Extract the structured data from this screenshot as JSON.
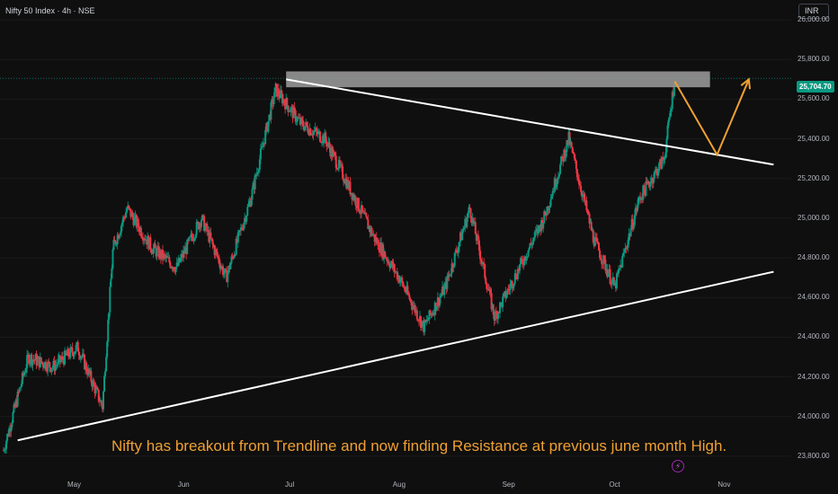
{
  "header": {
    "symbol": "Nifty 50 Index · 4h · NSE",
    "currency": "INR"
  },
  "last_price": {
    "label": "25,704.70",
    "value": 25704.7,
    "color": "#089981"
  },
  "note": "Nifty has breakout from Trendline and now finding Resistance at previous june month High.",
  "colors": {
    "up": "#089981",
    "down": "#f23645",
    "annotation": "#f0a032",
    "resistance": "#9e9e9e",
    "trendline": "#ffffff"
  },
  "icons": {
    "alert": "lightning-icon"
  },
  "chart_data": {
    "type": "candlestick",
    "timeframe": "4h",
    "x_ticks": [
      {
        "label": "May",
        "date": "2025-05-01"
      },
      {
        "label": "Jun",
        "date": "2025-06-01"
      },
      {
        "label": "Jul",
        "date": "2025-07-01"
      },
      {
        "label": "Aug",
        "date": "2025-08-01"
      },
      {
        "label": "Sep",
        "date": "2025-09-01"
      },
      {
        "label": "Oct",
        "date": "2025-10-01"
      },
      {
        "label": "Nov",
        "date": "2025-11-01"
      }
    ],
    "y_ticks": [
      "26,000.00",
      "25,800.00",
      "25,600.00",
      "25,400.00",
      "25,200.00",
      "25,000.00",
      "24,800.00",
      "24,600.00",
      "24,400.00",
      "24,200.00",
      "24,000.00",
      "23,800.00"
    ],
    "ylim": [
      23700,
      26100
    ],
    "xlim": [
      "2025-04-10",
      "2025-11-20"
    ],
    "closes": [
      {
        "date": "2025-04-11",
        "close": 23830
      },
      {
        "date": "2025-04-18",
        "close": 24300
      },
      {
        "date": "2025-04-25",
        "close": 24250
      },
      {
        "date": "2025-05-02",
        "close": 24350
      },
      {
        "date": "2025-05-09",
        "close": 24050
      },
      {
        "date": "2025-05-12",
        "close": 24850
      },
      {
        "date": "2025-05-16",
        "close": 25050
      },
      {
        "date": "2025-05-23",
        "close": 24850
      },
      {
        "date": "2025-05-30",
        "close": 24750
      },
      {
        "date": "2025-06-06",
        "close": 25000
      },
      {
        "date": "2025-06-13",
        "close": 24700
      },
      {
        "date": "2025-06-20",
        "close": 25100
      },
      {
        "date": "2025-06-27",
        "close": 25650
      },
      {
        "date": "2025-07-04",
        "close": 25480
      },
      {
        "date": "2025-07-11",
        "close": 25400
      },
      {
        "date": "2025-07-18",
        "close": 25150
      },
      {
        "date": "2025-07-25",
        "close": 24900
      },
      {
        "date": "2025-08-01",
        "close": 24700
      },
      {
        "date": "2025-08-08",
        "close": 24450
      },
      {
        "date": "2025-08-14",
        "close": 24650
      },
      {
        "date": "2025-08-21",
        "close": 25050
      },
      {
        "date": "2025-08-28",
        "close": 24500
      },
      {
        "date": "2025-09-04",
        "close": 24750
      },
      {
        "date": "2025-09-11",
        "close": 25000
      },
      {
        "date": "2025-09-18",
        "close": 25400
      },
      {
        "date": "2025-09-25",
        "close": 24900
      },
      {
        "date": "2025-10-01",
        "close": 24650
      },
      {
        "date": "2025-10-08",
        "close": 25100
      },
      {
        "date": "2025-10-15",
        "close": 25300
      },
      {
        "date": "2025-10-18",
        "close": 25704.7
      }
    ],
    "annotations": {
      "resistance_zone": {
        "from": "2025-06-30",
        "to": "2025-10-28",
        "low": 25660,
        "high": 25740
      },
      "upper_trendline": [
        {
          "date": "2025-06-30",
          "value": 25700
        },
        {
          "date": "2025-11-15",
          "value": 25270
        }
      ],
      "lower_trendline": [
        {
          "date": "2025-04-15",
          "value": 23880
        },
        {
          "date": "2025-11-15",
          "value": 24730
        }
      ],
      "projection_path": [
        {
          "date": "2025-10-18",
          "value": 25690
        },
        {
          "date": "2025-10-30",
          "value": 25320
        },
        {
          "date": "2025-11-08",
          "value": 25700
        }
      ]
    }
  }
}
